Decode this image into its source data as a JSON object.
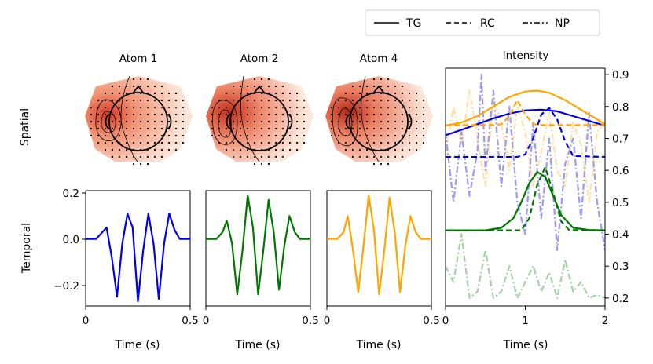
{
  "legend": {
    "entries": [
      {
        "label": "TG",
        "style": "solid"
      },
      {
        "label": "RC",
        "style": "dashed"
      },
      {
        "label": "NP",
        "style": "dashdot"
      }
    ]
  },
  "row_labels": {
    "spatial": "Spatial",
    "temporal": "Temporal"
  },
  "spatial_titles": [
    "Atom  1",
    "Atom  2",
    "Atom  4"
  ],
  "colors": {
    "atom1": "#0000ee",
    "atom2": "#007700",
    "atom3": "#ffa500",
    "topo": "#e0452a"
  },
  "chart_data": [
    {
      "type": "line",
      "title": "",
      "xlabel": "Time (s)",
      "ylabel": "",
      "xlim": [
        0,
        0.5
      ],
      "ylim": [
        -0.29,
        0.21
      ],
      "xticks": [
        "0",
        "0.5"
      ],
      "yticks": [
        "-0.2",
        "0.0",
        "0.2"
      ],
      "series": [
        {
          "name": "Atom 1",
          "color": "#0000ee",
          "x": [
            0,
            0.05,
            0.1,
            0.125,
            0.15,
            0.175,
            0.2,
            0.225,
            0.25,
            0.275,
            0.3,
            0.325,
            0.35,
            0.375,
            0.4,
            0.425,
            0.45,
            0.5
          ],
          "y": [
            0,
            0,
            0.05,
            -0.08,
            -0.25,
            -0.02,
            0.11,
            0.05,
            -0.27,
            -0.05,
            0.11,
            -0.02,
            -0.26,
            -0.02,
            0.11,
            0.04,
            0,
            0
          ]
        }
      ]
    },
    {
      "type": "line",
      "xlabel": "Time (s)",
      "xlim": [
        0,
        0.5
      ],
      "ylim": [
        -0.29,
        0.21
      ],
      "xticks": [
        "0",
        "0.5"
      ],
      "series": [
        {
          "name": "Atom 2",
          "color": "#007700",
          "x": [
            0,
            0.05,
            0.08,
            0.1,
            0.125,
            0.15,
            0.175,
            0.2,
            0.225,
            0.25,
            0.275,
            0.3,
            0.325,
            0.35,
            0.375,
            0.4,
            0.425,
            0.45,
            0.5
          ],
          "y": [
            0,
            0,
            0.03,
            0.08,
            -0.02,
            -0.24,
            -0.05,
            0.19,
            0.05,
            -0.24,
            -0.05,
            0.17,
            0.03,
            -0.22,
            -0.03,
            0.1,
            0.03,
            0,
            0
          ]
        }
      ]
    },
    {
      "type": "line",
      "xlabel": "Time (s)",
      "xlim": [
        0,
        0.5
      ],
      "ylim": [
        -0.29,
        0.21
      ],
      "xticks": [
        "0",
        "0.5"
      ],
      "series": [
        {
          "name": "Atom 4",
          "color": "#ffa500",
          "x": [
            0,
            0.05,
            0.08,
            0.1,
            0.125,
            0.15,
            0.175,
            0.2,
            0.225,
            0.25,
            0.275,
            0.3,
            0.325,
            0.35,
            0.375,
            0.4,
            0.425,
            0.45,
            0.5
          ],
          "y": [
            0,
            0,
            0.03,
            0.1,
            -0.05,
            -0.23,
            -0.03,
            0.19,
            0.04,
            -0.24,
            -0.05,
            0.18,
            0.03,
            -0.23,
            -0.03,
            0.1,
            0.03,
            0,
            0
          ]
        }
      ]
    },
    {
      "type": "line",
      "title": "Intensity",
      "xlabel": "Time (s)",
      "ylabel": "",
      "xlim": [
        0,
        2
      ],
      "ylim": [
        0.175,
        0.92
      ],
      "xticks": [
        "0",
        "1",
        "2"
      ],
      "yticks": [
        "0.2",
        "0.3",
        "0.4",
        "0.5",
        "0.6",
        "0.7",
        "0.8",
        "0.9"
      ],
      "series": [
        {
          "name": "TG atom 4",
          "color": "#ffa500",
          "style": "solid",
          "alpha": 1,
          "x": [
            0,
            0.2,
            0.4,
            0.6,
            0.8,
            1.0,
            1.15,
            1.3,
            1.5,
            1.7,
            1.9,
            2.0
          ],
          "y": [
            0.74,
            0.75,
            0.77,
            0.8,
            0.83,
            0.847,
            0.85,
            0.843,
            0.82,
            0.79,
            0.76,
            0.745
          ]
        },
        {
          "name": "TG atom 1",
          "color": "#0000ee",
          "style": "solid",
          "alpha": 1,
          "x": [
            0,
            0.2,
            0.4,
            0.6,
            0.8,
            1.0,
            1.2,
            1.4,
            1.6,
            1.8,
            2.0
          ],
          "y": [
            0.71,
            0.727,
            0.745,
            0.763,
            0.778,
            0.788,
            0.79,
            0.785,
            0.77,
            0.755,
            0.74
          ]
        },
        {
          "name": "TG atom 2",
          "color": "#007700",
          "style": "solid",
          "alpha": 1,
          "x": [
            0,
            0.5,
            0.7,
            0.85,
            0.95,
            1.05,
            1.15,
            1.25,
            1.35,
            1.45,
            1.6,
            1.8,
            2.0
          ],
          "y": [
            0.412,
            0.412,
            0.42,
            0.45,
            0.5,
            0.56,
            0.595,
            0.58,
            0.52,
            0.46,
            0.42,
            0.413,
            0.412
          ]
        },
        {
          "name": "RC atom 4",
          "color": "#ffa500",
          "style": "dashed",
          "alpha": 1,
          "x": [
            0,
            0.6,
            0.7,
            0.8,
            0.9,
            1.0,
            1.1,
            1.2,
            1.3,
            1.4,
            2.0
          ],
          "y": [
            0.742,
            0.742,
            0.745,
            0.77,
            0.82,
            0.775,
            0.745,
            0.742,
            0.742,
            0.742,
            0.742
          ]
        },
        {
          "name": "RC atom 1",
          "color": "#0000ee",
          "style": "dashed",
          "alpha": 1,
          "x": [
            0,
            0.9,
            1.0,
            1.1,
            1.2,
            1.3,
            1.4,
            1.5,
            1.6,
            2.0
          ],
          "y": [
            0.642,
            0.642,
            0.65,
            0.7,
            0.775,
            0.795,
            0.76,
            0.69,
            0.645,
            0.642
          ]
        },
        {
          "name": "RC atom 2",
          "color": "#007700",
          "style": "dashed",
          "alpha": 1,
          "x": [
            0,
            0.95,
            1.05,
            1.15,
            1.25,
            1.35,
            1.45,
            1.55,
            2.0
          ],
          "y": [
            0.412,
            0.412,
            0.45,
            0.555,
            0.61,
            0.53,
            0.44,
            0.413,
            0.412
          ]
        },
        {
          "name": "NP atom 1",
          "color": "#0000ee",
          "style": "dashdot",
          "alpha": 0.4,
          "x": [
            0,
            0.1,
            0.2,
            0.3,
            0.4,
            0.45,
            0.5,
            0.6,
            0.7,
            0.8,
            0.9,
            1.0,
            1.1,
            1.2,
            1.3,
            1.4,
            1.5,
            1.6,
            1.7,
            1.8,
            1.9,
            2.0
          ],
          "y": [
            0.72,
            0.5,
            0.72,
            0.52,
            0.66,
            0.9,
            0.6,
            0.85,
            0.55,
            0.8,
            0.5,
            0.4,
            0.75,
            0.45,
            0.7,
            0.35,
            0.62,
            0.7,
            0.45,
            0.78,
            0.5,
            0.35
          ]
        },
        {
          "name": "NP atom 4",
          "color": "#ffa500",
          "style": "dashdot",
          "alpha": 0.35,
          "x": [
            0,
            0.1,
            0.2,
            0.3,
            0.4,
            0.5,
            0.6,
            0.7,
            0.8,
            0.9,
            1.0,
            1.1,
            1.2,
            1.3,
            1.4,
            1.5,
            1.6,
            1.7,
            1.8,
            1.9,
            2.0
          ],
          "y": [
            0.65,
            0.8,
            0.68,
            0.85,
            0.7,
            0.55,
            0.82,
            0.75,
            0.6,
            0.8,
            0.72,
            0.55,
            0.66,
            0.78,
            0.6,
            0.55,
            0.75,
            0.68,
            0.5,
            0.72,
            0.75
          ]
        },
        {
          "name": "NP atom 2",
          "color": "#007700",
          "style": "dashdot",
          "alpha": 0.35,
          "x": [
            0,
            0.1,
            0.2,
            0.3,
            0.4,
            0.5,
            0.6,
            0.7,
            0.8,
            0.9,
            1.0,
            1.1,
            1.2,
            1.3,
            1.4,
            1.5,
            1.6,
            1.7,
            1.8,
            1.9,
            2.0
          ],
          "y": [
            0.3,
            0.25,
            0.4,
            0.2,
            0.22,
            0.35,
            0.2,
            0.22,
            0.3,
            0.2,
            0.25,
            0.3,
            0.22,
            0.28,
            0.2,
            0.32,
            0.22,
            0.25,
            0.2,
            0.21,
            0.2
          ]
        }
      ]
    }
  ]
}
